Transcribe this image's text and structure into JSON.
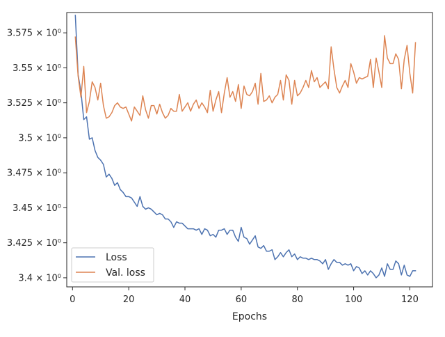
{
  "chart_data": {
    "type": "line",
    "title": "",
    "xlabel": "Epochs",
    "ylabel": "",
    "xlim": [
      -2.05,
      128.05
    ],
    "ylim": [
      3.3935,
      3.5895
    ],
    "x_ticks": [
      0,
      20,
      40,
      60,
      80,
      100,
      120
    ],
    "x_tick_labels": [
      "0",
      "20",
      "40",
      "60",
      "80",
      "100",
      "120"
    ],
    "y_ticks": [
      3.4,
      3.425,
      3.45,
      3.475,
      3.5,
      3.525,
      3.55,
      3.575
    ],
    "y_tick_labels": [
      "3.4 × 10⁰",
      "3.425 × 10⁰",
      "3.45 × 10⁰",
      "3.475 × 10⁰",
      "3.5 × 10⁰",
      "3.525 × 10⁰",
      "3.55 × 10⁰",
      "3.575 × 10⁰"
    ],
    "grid": false,
    "legend_position": "lower-left",
    "series": [
      {
        "name": "Loss",
        "color": "#4c72b0",
        "x": [
          1,
          2,
          3,
          4,
          5,
          6,
          7,
          8,
          9,
          10,
          11,
          12,
          13,
          14,
          15,
          16,
          17,
          18,
          19,
          20,
          21,
          22,
          23,
          24,
          25,
          26,
          27,
          28,
          29,
          30,
          31,
          32,
          33,
          34,
          35,
          36,
          37,
          38,
          39,
          40,
          41,
          42,
          43,
          44,
          45,
          46,
          47,
          48,
          49,
          50,
          51,
          52,
          53,
          54,
          55,
          56,
          57,
          58,
          59,
          60,
          61,
          62,
          63,
          64,
          65,
          66,
          67,
          68,
          69,
          70,
          71,
          72,
          73,
          74,
          75,
          76,
          77,
          78,
          79,
          80,
          81,
          82,
          83,
          84,
          85,
          86,
          87,
          88,
          89,
          90,
          91,
          92,
          93,
          94,
          95,
          96,
          97,
          98,
          99,
          100,
          101,
          102,
          103,
          104,
          105,
          106,
          107,
          108,
          109,
          110,
          111,
          112,
          113,
          114,
          115,
          116,
          117,
          118,
          119,
          120,
          121,
          122
        ],
        "values": [
          3.5875,
          3.545,
          3.533,
          3.513,
          3.515,
          3.499,
          3.5,
          3.491,
          3.486,
          3.484,
          3.481,
          3.472,
          3.474,
          3.471,
          3.466,
          3.468,
          3.463,
          3.461,
          3.458,
          3.458,
          3.457,
          3.454,
          3.451,
          3.458,
          3.451,
          3.449,
          3.45,
          3.449,
          3.447,
          3.445,
          3.446,
          3.445,
          3.442,
          3.442,
          3.44,
          3.436,
          3.44,
          3.439,
          3.439,
          3.437,
          3.435,
          3.435,
          3.435,
          3.434,
          3.435,
          3.431,
          3.435,
          3.434,
          3.43,
          3.431,
          3.429,
          3.434,
          3.434,
          3.435,
          3.431,
          3.434,
          3.434,
          3.429,
          3.426,
          3.436,
          3.429,
          3.428,
          3.424,
          3.427,
          3.43,
          3.422,
          3.421,
          3.423,
          3.419,
          3.419,
          3.42,
          3.413,
          3.415,
          3.418,
          3.415,
          3.418,
          3.42,
          3.415,
          3.417,
          3.413,
          3.415,
          3.414,
          3.414,
          3.413,
          3.414,
          3.413,
          3.413,
          3.412,
          3.41,
          3.413,
          3.406,
          3.41,
          3.413,
          3.411,
          3.411,
          3.409,
          3.41,
          3.409,
          3.41,
          3.405,
          3.408,
          3.407,
          3.403,
          3.405,
          3.402,
          3.405,
          3.403,
          3.4,
          3.402,
          3.407,
          3.401,
          3.41,
          3.406,
          3.406,
          3.412,
          3.41,
          3.402,
          3.409,
          3.402,
          3.401,
          3.405,
          3.405
        ]
      },
      {
        "name": "Val. loss",
        "color": "#dd8452",
        "x": [
          1,
          2,
          3,
          4,
          5,
          6,
          7,
          8,
          9,
          10,
          11,
          12,
          13,
          14,
          15,
          16,
          17,
          18,
          19,
          20,
          21,
          22,
          23,
          24,
          25,
          26,
          27,
          28,
          29,
          30,
          31,
          32,
          33,
          34,
          35,
          36,
          37,
          38,
          39,
          40,
          41,
          42,
          43,
          44,
          45,
          46,
          47,
          48,
          49,
          50,
          51,
          52,
          53,
          54,
          55,
          56,
          57,
          58,
          59,
          60,
          61,
          62,
          63,
          64,
          65,
          66,
          67,
          68,
          69,
          70,
          71,
          72,
          73,
          74,
          75,
          76,
          77,
          78,
          79,
          80,
          81,
          82,
          83,
          84,
          85,
          86,
          87,
          88,
          89,
          90,
          91,
          92,
          93,
          94,
          95,
          96,
          97,
          98,
          99,
          100,
          101,
          102,
          103,
          104,
          105,
          106,
          107,
          108,
          109,
          110,
          111,
          112,
          113,
          114,
          115,
          116,
          117,
          118,
          119,
          120,
          121,
          122
        ],
        "values": [
          3.572,
          3.544,
          3.529,
          3.551,
          3.518,
          3.526,
          3.54,
          3.536,
          3.527,
          3.539,
          3.523,
          3.514,
          3.515,
          3.518,
          3.523,
          3.525,
          3.522,
          3.521,
          3.522,
          3.517,
          3.512,
          3.522,
          3.519,
          3.516,
          3.53,
          3.52,
          3.514,
          3.523,
          3.523,
          3.517,
          3.524,
          3.518,
          3.514,
          3.516,
          3.521,
          3.519,
          3.519,
          3.531,
          3.519,
          3.522,
          3.525,
          3.519,
          3.524,
          3.527,
          3.521,
          3.525,
          3.522,
          3.518,
          3.534,
          3.519,
          3.527,
          3.533,
          3.518,
          3.532,
          3.543,
          3.529,
          3.533,
          3.526,
          3.538,
          3.521,
          3.537,
          3.531,
          3.53,
          3.533,
          3.539,
          3.524,
          3.546,
          3.526,
          3.527,
          3.53,
          3.525,
          3.529,
          3.531,
          3.541,
          3.527,
          3.545,
          3.541,
          3.524,
          3.541,
          3.53,
          3.532,
          3.536,
          3.541,
          3.536,
          3.548,
          3.54,
          3.543,
          3.536,
          3.538,
          3.54,
          3.535,
          3.565,
          3.549,
          3.536,
          3.532,
          3.537,
          3.541,
          3.536,
          3.553,
          3.547,
          3.539,
          3.543,
          3.542,
          3.543,
          3.544,
          3.556,
          3.536,
          3.557,
          3.547,
          3.536,
          3.573,
          3.557,
          3.553,
          3.553,
          3.56,
          3.556,
          3.535,
          3.556,
          3.566,
          3.546,
          3.532,
          3.568
        ]
      }
    ]
  }
}
